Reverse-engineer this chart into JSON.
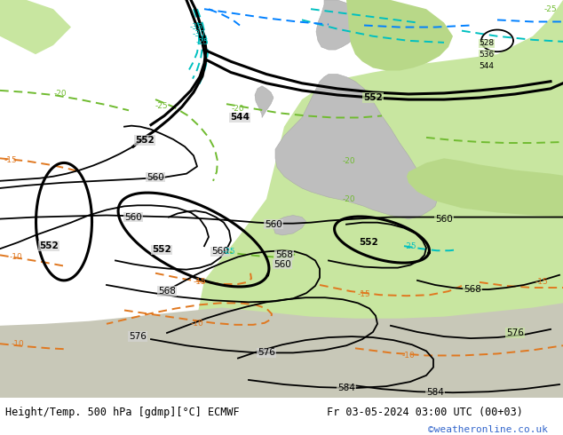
{
  "title_left": "Height/Temp. 500 hPa [gdmp][°C] ECMWF",
  "title_right": "Fr 03-05-2024 03:00 UTC (00+03)",
  "credit": "©weatheronline.co.uk",
  "fig_width": 6.34,
  "fig_height": 4.9,
  "dpi": 100,
  "map_bg": "#d8d8d8",
  "ocean_bg": "#e8e8e8",
  "green_bg": "#c8e8a0",
  "land_color": "#c8c8c8",
  "green_land": "#b8d890"
}
